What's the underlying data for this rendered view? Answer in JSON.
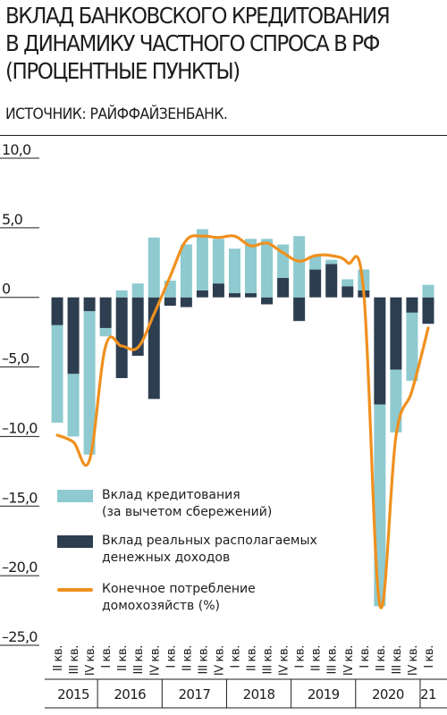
{
  "title": "ВКЛАД БАНКОВСКОГО КРЕДИТОВАНИЯ\nВ ДИНАМИКУ ЧАСТНОГО СПРОСА В РФ\n(ПРОЦЕНТНЫЕ ПУНКТЫ)",
  "source": "ИСТОЧНИК: РАЙФФАЙЗЕНБАНК.",
  "colors": {
    "credit": "#8ecad0",
    "income": "#2d3e50",
    "consumption": "#f0901e",
    "text": "#1d1d1b"
  },
  "chart_data": {
    "type": "bar",
    "title": "ВКЛАД БАНКОВСКОГО КРЕДИТОВАНИЯ В ДИНАМИКУ ЧАСТНОГО СПРОСА В РФ (ПРОЦЕНТНЫЕ ПУНКТЫ)",
    "ylim": [
      -25,
      10
    ],
    "y_ticks": [
      10,
      5,
      0,
      -5,
      -10,
      -15,
      -20,
      -25
    ],
    "y_tick_labels": [
      "10,0",
      "5,0",
      "0",
      "–5,0",
      "–10,0",
      "–15,0",
      "–20,0",
      "–25,0"
    ],
    "grid": false,
    "legend_position": "bottom-left",
    "categories": [
      "II кв.",
      "III кв.",
      "IV кв.",
      "I кв.",
      "II кв.",
      "III кв.",
      "IV кв.",
      "I кв.",
      "II кв.",
      "III кв.",
      "IV кв.",
      "I кв.",
      "II кв.",
      "III кв.",
      "IV кв.",
      "I кв.",
      "II кв.",
      "III кв.",
      "IV кв.",
      "I кв.",
      "II кв.",
      "III кв.",
      "IV кв.",
      "I кв."
    ],
    "years": [
      {
        "label": "2015",
        "count": 3
      },
      {
        "label": "2016",
        "count": 4
      },
      {
        "label": "2017",
        "count": 4
      },
      {
        "label": "2018",
        "count": 4
      },
      {
        "label": "2019",
        "count": 4
      },
      {
        "label": "2020",
        "count": 4
      },
      {
        "label": "21",
        "count": 1
      }
    ],
    "series": [
      {
        "name": "Вклад кредитования\n(за вычетом сбережений)",
        "type": "bar",
        "values": [
          -7,
          -4.5,
          -10.3,
          -0.6,
          0.5,
          1.0,
          4.3,
          1.2,
          3.8,
          4.4,
          3.2,
          3.2,
          3.9,
          4.2,
          2.4,
          4.4,
          1.0,
          0.3,
          0.5,
          1.5,
          -14.5,
          -4.5,
          -4.9,
          0.9
        ]
      },
      {
        "name": "Вклад реальных располагаемых\nденежных доходов",
        "type": "bar",
        "values": [
          -2,
          -5.5,
          -1.0,
          -2.2,
          -5.8,
          -4.2,
          -7.3,
          -0.6,
          -0.7,
          0.5,
          1.0,
          0.3,
          0.3,
          -0.5,
          1.4,
          -1.7,
          2.0,
          2.4,
          0.8,
          0.5,
          -7.7,
          -5.2,
          -1.1,
          -1.9
        ]
      },
      {
        "name": "Конечное потребление\nдомохозяйств (%)",
        "type": "line",
        "values": [
          -9.9,
          -10.4,
          -11.7,
          -3.5,
          -3.5,
          -3.6,
          -1.2,
          1.5,
          4.1,
          4.4,
          4.3,
          4.4,
          3.7,
          3.9,
          3.2,
          2.6,
          3.0,
          3.0,
          2.5,
          0.4,
          -22.1,
          -10.0,
          -6.7,
          -2.2
        ]
      }
    ]
  }
}
